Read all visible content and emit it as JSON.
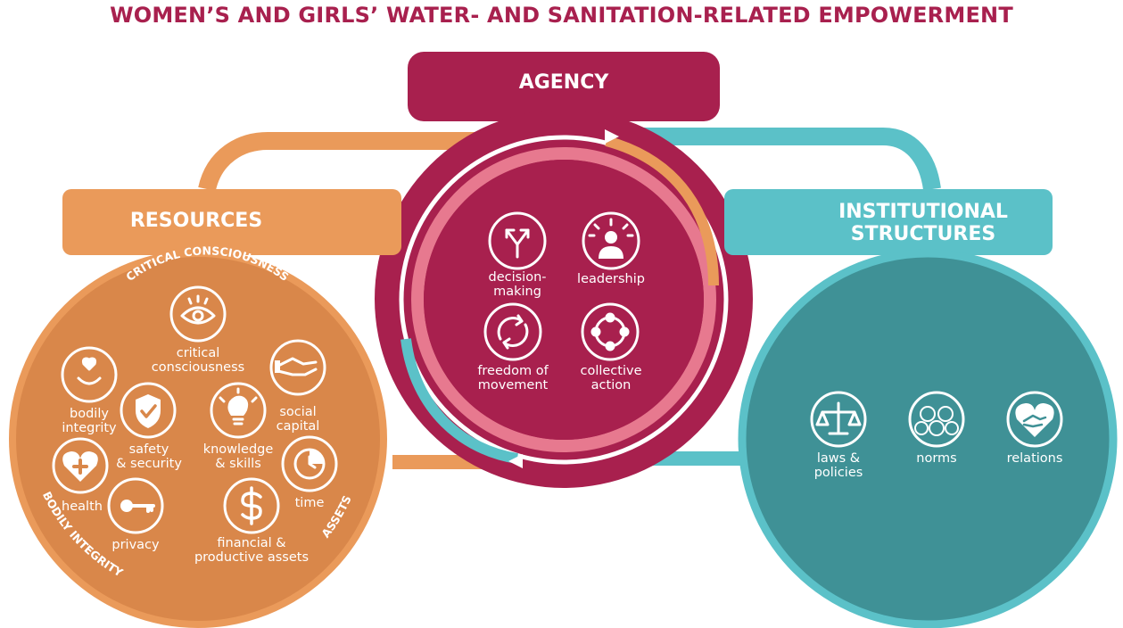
{
  "title": "WOMEN’S AND GIRLS’ WATER- AND SANITATION-RELATED EMPOWERMENT",
  "colors": {
    "agency": "#a8204e",
    "resources": "#ea9a5a",
    "resources_circle": "#d9874a",
    "institutional": "#5bc1c8",
    "institutional_circle": "#3f9196",
    "title": "#a8204e"
  },
  "agency": {
    "header": "AGENCY",
    "items": [
      {
        "label_1": "decision-",
        "label_2": "making",
        "icon": "fork-arrows-icon"
      },
      {
        "label_1": "leadership",
        "label_2": "",
        "icon": "leader-person-icon"
      },
      {
        "label_1": "freedom of",
        "label_2": "movement",
        "icon": "cycle-arrows-icon"
      },
      {
        "label_1": "collective",
        "label_2": "action",
        "icon": "collective-circle-icon"
      }
    ]
  },
  "resources": {
    "header": "RESOURCES",
    "arc_labels": {
      "top": "CRITICAL CONSCIOUSNESS",
      "left": "BODILY INTEGRITY",
      "right": "ASSETS"
    },
    "items": [
      {
        "label_1": "critical",
        "label_2": "consciousness",
        "icon": "eye-icon"
      },
      {
        "label_1": "bodily",
        "label_2": "integrity",
        "icon": "smiley-heart-icon"
      },
      {
        "label_1": "safety",
        "label_2": "& security",
        "icon": "shield-check-icon"
      },
      {
        "label_1": "knowledge",
        "label_2": "& skills",
        "icon": "lightbulb-icon"
      },
      {
        "label_1": "social",
        "label_2": "capital",
        "icon": "handshake-icon"
      },
      {
        "label_1": "health",
        "label_2": "",
        "icon": "heart-plus-icon"
      },
      {
        "label_1": "privacy",
        "label_2": "",
        "icon": "key-icon"
      },
      {
        "label_1": "financial &",
        "label_2": "productive assets",
        "icon": "dollar-icon"
      },
      {
        "label_1": "time",
        "label_2": "",
        "icon": "clock-icon"
      }
    ]
  },
  "institutional": {
    "header_1": "INSTITUTIONAL",
    "header_2": "STRUCTURES",
    "items": [
      {
        "label_1": "laws &",
        "label_2": "policies",
        "icon": "scales-icon"
      },
      {
        "label_1": "norms",
        "label_2": "",
        "icon": "faces-icon"
      },
      {
        "label_1": "relations",
        "label_2": "",
        "icon": "heart-handshake-icon"
      }
    ]
  }
}
